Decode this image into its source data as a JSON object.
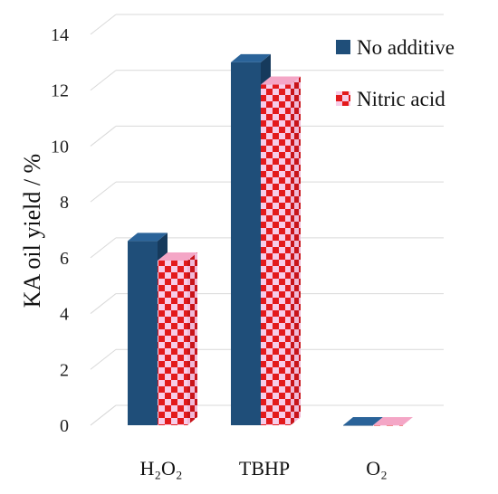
{
  "chart_data": {
    "type": "bar",
    "title": "",
    "xlabel": "",
    "ylabel": "KA oil yield / %",
    "ylim": [
      0,
      14
    ],
    "yticks": [
      0,
      2,
      4,
      6,
      8,
      10,
      12,
      14
    ],
    "grid": true,
    "legend_position": "top-right",
    "categories": [
      "H₂O₂",
      "TBHP",
      "O₂"
    ],
    "series": [
      {
        "name": "No additive",
        "values": [
          6.6,
          13.0,
          0
        ],
        "color": "#1f4e79"
      },
      {
        "name": "Nitric acid",
        "values": [
          5.9,
          12.2,
          0
        ],
        "color": "#e31a1c"
      }
    ]
  }
}
